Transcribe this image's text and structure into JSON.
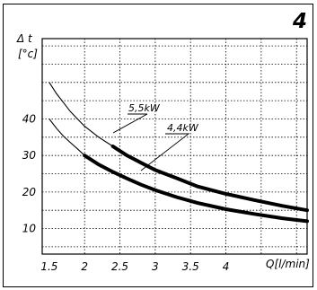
{
  "chart_data": {
    "type": "line",
    "panel_number": "4",
    "ylabel": "Δ t",
    "yunit": "[°c]",
    "xlabel": "Q[l/min]",
    "xlim": [
      1.4,
      5.15
    ],
    "ylim": [
      3,
      62
    ],
    "x_ticks": [
      "1.5",
      "2",
      "2.5",
      "3",
      "3.5",
      "4"
    ],
    "y_ticks": [
      "10",
      "20",
      "30",
      "40"
    ],
    "grid": true,
    "series": [
      {
        "name": "5,5kW",
        "x": [
          1.5,
          1.6,
          1.7,
          1.8,
          1.9,
          2.0,
          2.2,
          2.4,
          2.6,
          2.8,
          3.0,
          3.3,
          3.6,
          4.0,
          4.4,
          4.8,
          5.15
        ],
        "y": [
          50,
          47,
          44.5,
          42,
          40,
          38,
          35,
          32.5,
          30,
          28,
          26,
          23.8,
          21.5,
          19.5,
          17.8,
          16.2,
          15
        ]
      },
      {
        "name": "4,4kW",
        "x": [
          1.5,
          1.6,
          1.7,
          1.8,
          1.9,
          2.0,
          2.2,
          2.4,
          2.6,
          2.8,
          3.0,
          3.3,
          3.6,
          4.0,
          4.4,
          4.8,
          5.15
        ],
        "y": [
          40,
          37.5,
          35.3,
          33.5,
          31.8,
          30,
          27.5,
          25.5,
          23.7,
          22,
          20.5,
          18.6,
          17,
          15.3,
          14,
          12.8,
          12
        ]
      }
    ]
  }
}
